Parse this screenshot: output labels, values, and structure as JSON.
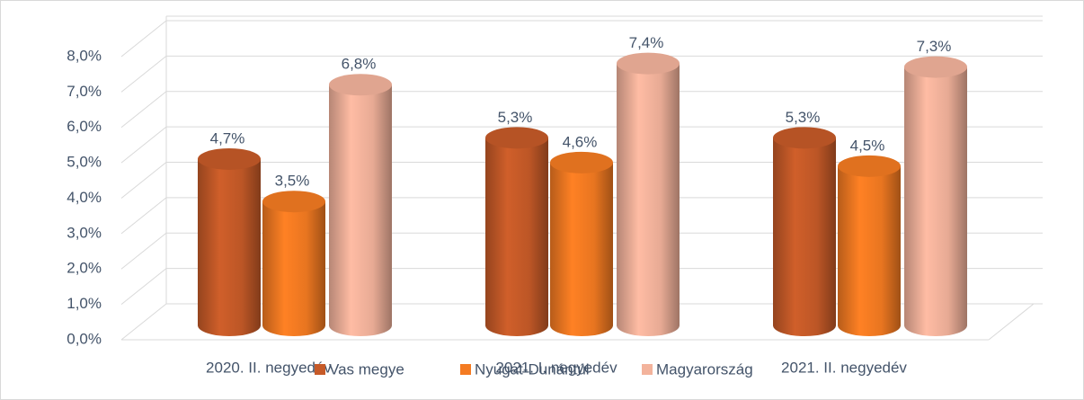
{
  "chart_data": {
    "type": "bar3d",
    "categories": [
      "2020. II. negyedév",
      "2021. I. negyedév",
      "2021. II. negyedév"
    ],
    "series": [
      {
        "name": "Vas megye",
        "color": "#c65a28",
        "values": [
          4.7,
          5.3,
          5.3
        ],
        "value_labels": [
          "4,7%",
          "5,3%",
          "5,3%"
        ]
      },
      {
        "name": "Nyugat-Dunántúl",
        "color": "#f47b22",
        "values": [
          3.5,
          4.6,
          4.5
        ],
        "value_labels": [
          "3,5%",
          "4,6%",
          "4,5%"
        ]
      },
      {
        "name": "Magyarország",
        "color": "#f3b39c",
        "values": [
          6.8,
          7.4,
          7.3
        ],
        "value_labels": [
          "6,8%",
          "7,4%",
          "7,3%"
        ]
      }
    ],
    "ylim": [
      0,
      8
    ],
    "yticks": [
      {
        "value": 0,
        "label": "0,0%"
      },
      {
        "value": 1,
        "label": "1,0%"
      },
      {
        "value": 2,
        "label": "2,0%"
      },
      {
        "value": 3,
        "label": "3,0%"
      },
      {
        "value": 4,
        "label": "4,0%"
      },
      {
        "value": 5,
        "label": "5,0%"
      },
      {
        "value": 6,
        "label": "6,0%"
      },
      {
        "value": 7,
        "label": "7,0%"
      },
      {
        "value": 8,
        "label": "8,0%"
      }
    ],
    "grid": true,
    "legend": "bottom"
  }
}
